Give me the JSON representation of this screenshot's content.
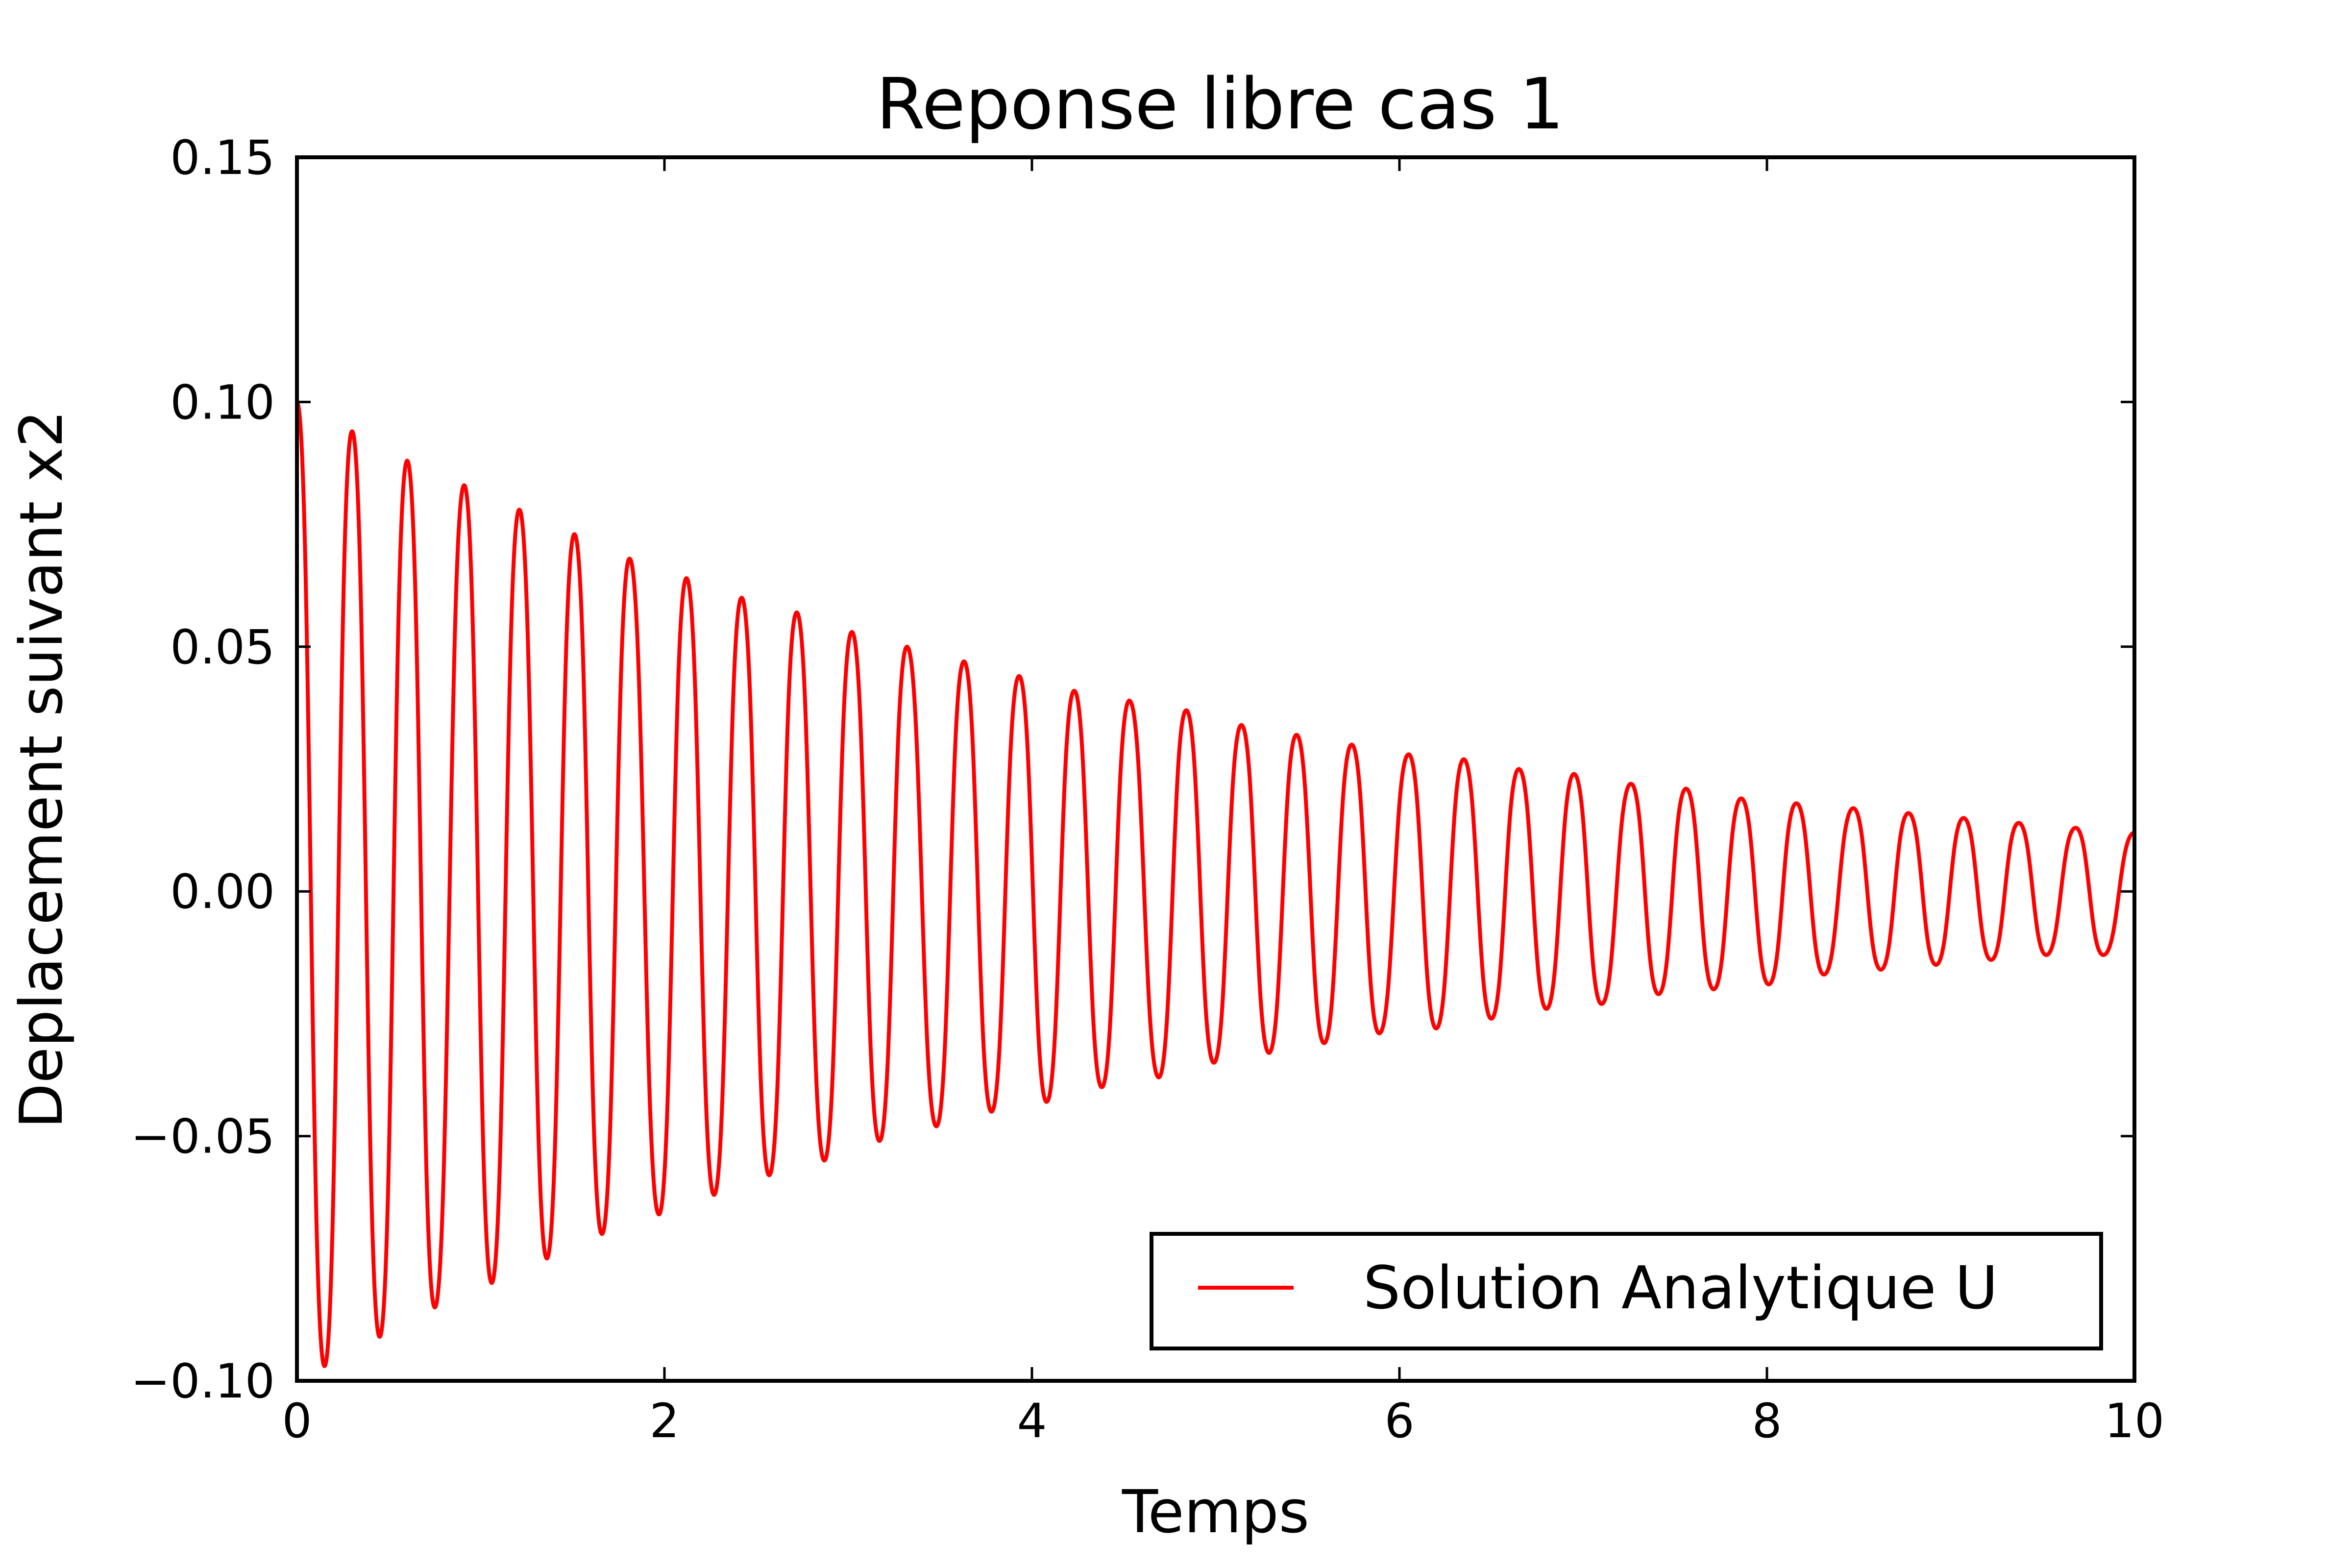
{
  "chart_data": {
    "type": "line",
    "title": "Reponse libre cas 1",
    "xlabel": "Temps",
    "ylabel": "Deplacement suivant x2",
    "xlim": [
      0,
      10
    ],
    "ylim": [
      -0.1,
      0.15
    ],
    "xticks": [
      0,
      2,
      4,
      6,
      8,
      10
    ],
    "xtick_labels": [
      "0",
      "2",
      "4",
      "6",
      "8",
      "10"
    ],
    "yticks": [
      -0.1,
      -0.05,
      0.0,
      0.05,
      0.1,
      0.15
    ],
    "ytick_labels": [
      "−0.10",
      "−0.05",
      "0.00",
      "0.05",
      "0.10",
      "0.15"
    ],
    "grid": false,
    "legend_position": "lower-right",
    "series": [
      {
        "name": "Solution Analytique U",
        "color": "#ff0000",
        "x": [
          0.0,
          0.15,
          0.3,
          0.45,
          0.6,
          0.75,
          0.91,
          1.06,
          1.21,
          1.36,
          1.51,
          1.66,
          1.81,
          1.97,
          2.12,
          2.27,
          2.42,
          2.57,
          2.72,
          2.87,
          3.02,
          3.17,
          3.32,
          3.48,
          3.63,
          3.78,
          3.93,
          4.08,
          4.23,
          4.38,
          4.53,
          4.69,
          4.84,
          4.99,
          5.14,
          5.29,
          5.44,
          5.59,
          5.74,
          5.89,
          6.05,
          6.2,
          6.35,
          6.5,
          6.65,
          6.8,
          6.95,
          7.1,
          7.26,
          7.41,
          7.56,
          7.71,
          7.86,
          8.01,
          8.16,
          8.31,
          8.47,
          8.62,
          8.77,
          8.92,
          9.07,
          9.22,
          9.37,
          9.52,
          9.68,
          9.83,
          10.0
        ],
        "y": [
          0.1,
          -0.097,
          0.094,
          -0.091,
          0.088,
          -0.085,
          0.083,
          -0.08,
          0.078,
          -0.075,
          0.073,
          -0.07,
          0.068,
          -0.066,
          0.064,
          -0.062,
          0.06,
          -0.058,
          0.057,
          -0.055,
          0.053,
          -0.051,
          0.05,
          -0.048,
          0.047,
          -0.045,
          0.044,
          -0.043,
          0.041,
          -0.04,
          0.039,
          -0.038,
          0.037,
          -0.035,
          0.034,
          -0.033,
          0.032,
          -0.031,
          0.03,
          -0.029,
          0.028,
          -0.028,
          0.027,
          -0.026,
          0.025,
          -0.024,
          0.024,
          -0.023,
          0.022,
          -0.021,
          0.021,
          -0.02,
          0.019,
          -0.019,
          0.018,
          -0.017,
          0.017,
          -0.016,
          0.016,
          -0.015,
          0.015,
          -0.014,
          0.014,
          -0.013,
          0.013,
          -0.013,
          0.012
        ]
      }
    ]
  }
}
